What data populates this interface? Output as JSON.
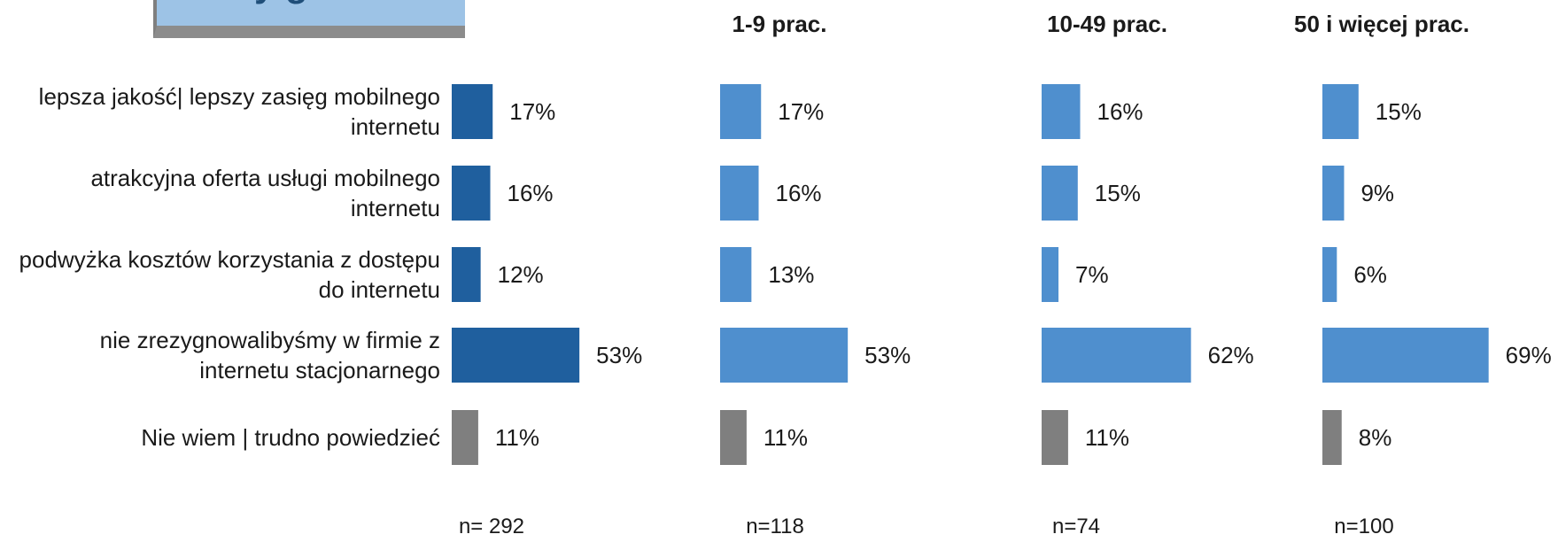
{
  "chart_data": {
    "type": "bar",
    "orientation": "horizontal",
    "title_fragment": "y g",
    "categories": [
      [
        "lepsza jakość| lepszy zasięg mobilnego",
        "internetu"
      ],
      [
        "atrakcyjna oferta usługi mobilnego",
        "internetu"
      ],
      [
        "podwyżka kosztów korzystania z dostępu",
        "do internetu"
      ],
      [
        "nie zrezygnowalibyśmy w firmie z",
        "internetu stacjonarnego"
      ],
      [
        "Nie wiem | trudno powiedzieć"
      ]
    ],
    "bar_colors": [
      "primary",
      "primary",
      "primary",
      "primary",
      "gray"
    ],
    "colors": {
      "total": "#1f5f9e",
      "segment": "#4f8fce",
      "gray": "#7f7f7f",
      "title_box": "#9dc3e6"
    },
    "series": [
      {
        "name": "",
        "values": [
          17,
          16,
          12,
          53,
          11
        ],
        "n_label": "n= 292"
      },
      {
        "name": "1-9 prac.",
        "values": [
          17,
          16,
          13,
          53,
          11
        ],
        "n_label": "n=118"
      },
      {
        "name": "10-49 prac.",
        "values": [
          16,
          15,
          7,
          62,
          11
        ],
        "n_label": "n=74"
      },
      {
        "name": "50 i więcej prac.",
        "values": [
          15,
          9,
          6,
          69,
          8
        ],
        "n_label": "n=100"
      }
    ],
    "value_suffix": "%",
    "xlim": [
      0,
      100
    ]
  }
}
